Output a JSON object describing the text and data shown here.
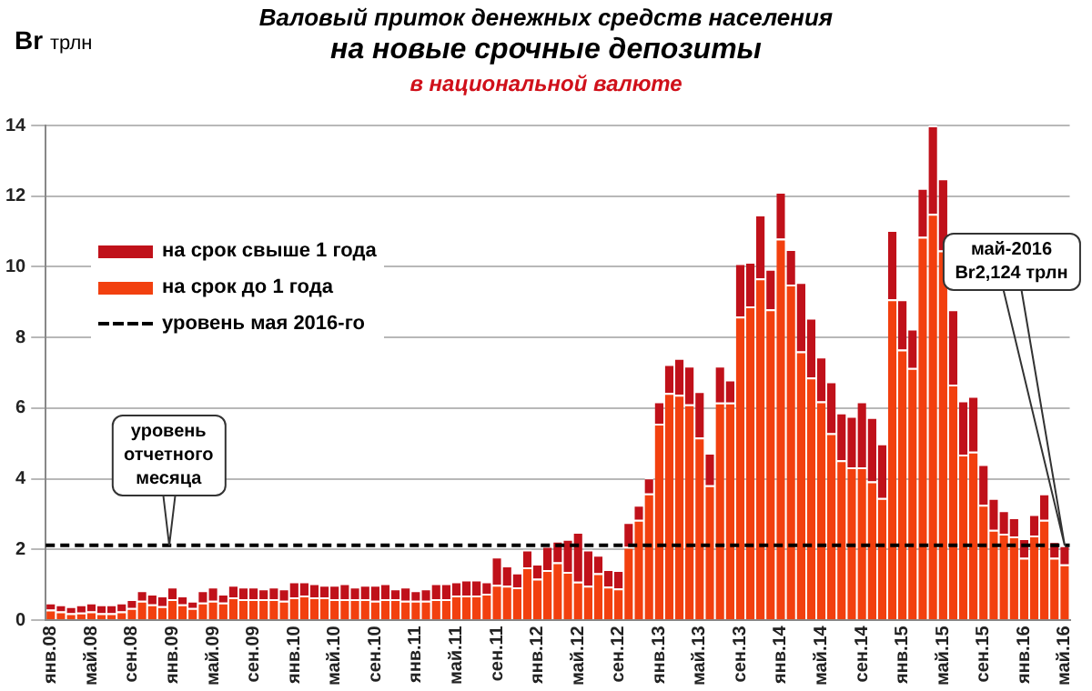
{
  "chart_data": {
    "type": "bar",
    "title": "Валовый  приток денежных средств населения",
    "subtitle": "на новые срочные депозиты\nв национальной  валюте",
    "ylabel": "Br трлн",
    "stacked": true,
    "grid": "y",
    "legend": "top left",
    "ylim": [
      0,
      14
    ],
    "yticks": [
      0,
      2,
      4,
      6,
      8,
      10,
      12,
      14
    ],
    "categories": [
      "янв.08",
      null,
      null,
      null,
      "май.08",
      null,
      null,
      null,
      "сен.08",
      null,
      null,
      null,
      "янв.09",
      null,
      null,
      null,
      "май.09",
      null,
      null,
      null,
      "сен.09",
      null,
      null,
      null,
      "янв.10",
      null,
      null,
      null,
      "май.10",
      null,
      null,
      null,
      "сен.10",
      null,
      null,
      null,
      "янв.11",
      null,
      null,
      null,
      "май.11",
      null,
      null,
      null,
      "сен.11",
      null,
      null,
      null,
      "янв.12",
      null,
      null,
      null,
      "май.12",
      null,
      null,
      null,
      "сен.12",
      null,
      null,
      null,
      "янв.13",
      null,
      null,
      null,
      "май.13",
      null,
      null,
      null,
      "сен.13",
      null,
      null,
      null,
      "янв.14",
      null,
      null,
      null,
      "май.14",
      null,
      null,
      null,
      "сен.14",
      null,
      null,
      null,
      "янв.15",
      null,
      null,
      null,
      "май.15",
      null,
      null,
      null,
      "сен.15",
      null,
      null,
      null,
      "янв.16",
      null,
      null,
      null,
      "май.16"
    ],
    "series": [
      {
        "name": "на срок до 1 года",
        "color": "#f2400f",
        "values": [
          0.3,
          0.25,
          0.2,
          0.22,
          0.25,
          0.2,
          0.2,
          0.25,
          0.35,
          0.55,
          0.45,
          0.4,
          0.6,
          0.45,
          0.35,
          0.5,
          0.55,
          0.5,
          0.65,
          0.6,
          0.6,
          0.6,
          0.6,
          0.55,
          0.65,
          0.7,
          0.65,
          0.65,
          0.6,
          0.6,
          0.6,
          0.6,
          0.55,
          0.6,
          0.6,
          0.55,
          0.55,
          0.55,
          0.6,
          0.6,
          0.7,
          0.7,
          0.7,
          0.75,
          1.0,
          0.98,
          0.93,
          1.5,
          1.18,
          1.42,
          1.64,
          1.37,
          1.09,
          0.98,
          1.33,
          0.95,
          0.9,
          2.08,
          2.84,
          3.59,
          5.56,
          6.43,
          6.38,
          6.11,
          5.17,
          3.82,
          6.16,
          6.16,
          8.59,
          8.88,
          9.67,
          8.8,
          10.8,
          9.5,
          7.61,
          6.87,
          6.19,
          5.29,
          4.53,
          4.33,
          4.33,
          3.93,
          3.46,
          9.08,
          7.66,
          7.14,
          10.85,
          11.5,
          10.46,
          6.67,
          4.69,
          4.77,
          3.27,
          2.56,
          2.45,
          2.37,
          1.77,
          2.4,
          2.84,
          1.77,
          1.58
        ]
      },
      {
        "name": "на срок свыше 1 года",
        "color": "#c0111a",
        "values": [
          0.2,
          0.2,
          0.2,
          0.23,
          0.25,
          0.25,
          0.25,
          0.25,
          0.25,
          0.3,
          0.3,
          0.3,
          0.35,
          0.25,
          0.2,
          0.35,
          0.4,
          0.25,
          0.35,
          0.35,
          0.35,
          0.3,
          0.35,
          0.35,
          0.45,
          0.4,
          0.4,
          0.35,
          0.4,
          0.45,
          0.35,
          0.4,
          0.45,
          0.45,
          0.3,
          0.4,
          0.3,
          0.35,
          0.45,
          0.45,
          0.4,
          0.45,
          0.45,
          0.35,
          0.8,
          0.57,
          0.42,
          0.5,
          0.42,
          0.68,
          0.61,
          0.93,
          1.41,
          1.02,
          0.52,
          0.5,
          0.52,
          0.7,
          0.43,
          0.45,
          0.63,
          0.82,
          1.04,
          1.09,
          1.31,
          0.92,
          1.04,
          0.65,
          1.51,
          1.26,
          1.81,
          1.14,
          1.32,
          1.0,
          1.96,
          1.69,
          1.27,
          1.47,
          1.35,
          1.45,
          1.86,
          1.82,
          1.54,
          1.96,
          1.42,
          1.11,
          1.38,
          2.5,
          2.04,
          2.13,
          1.53,
          1.58,
          1.15,
          0.9,
          0.66,
          0.54,
          0.55,
          0.6,
          0.75,
          0.47,
          0.54
        ]
      }
    ],
    "ref_lines": [
      {
        "axis": "y",
        "value": 2.124,
        "label": "уровень мая 2016-го",
        "color": "#000000",
        "line_style": "dashed"
      }
    ],
    "annotations": [
      "уровень\nотчетного\nмесяца",
      "май-2016\nBr2,124 трлн"
    ]
  }
}
